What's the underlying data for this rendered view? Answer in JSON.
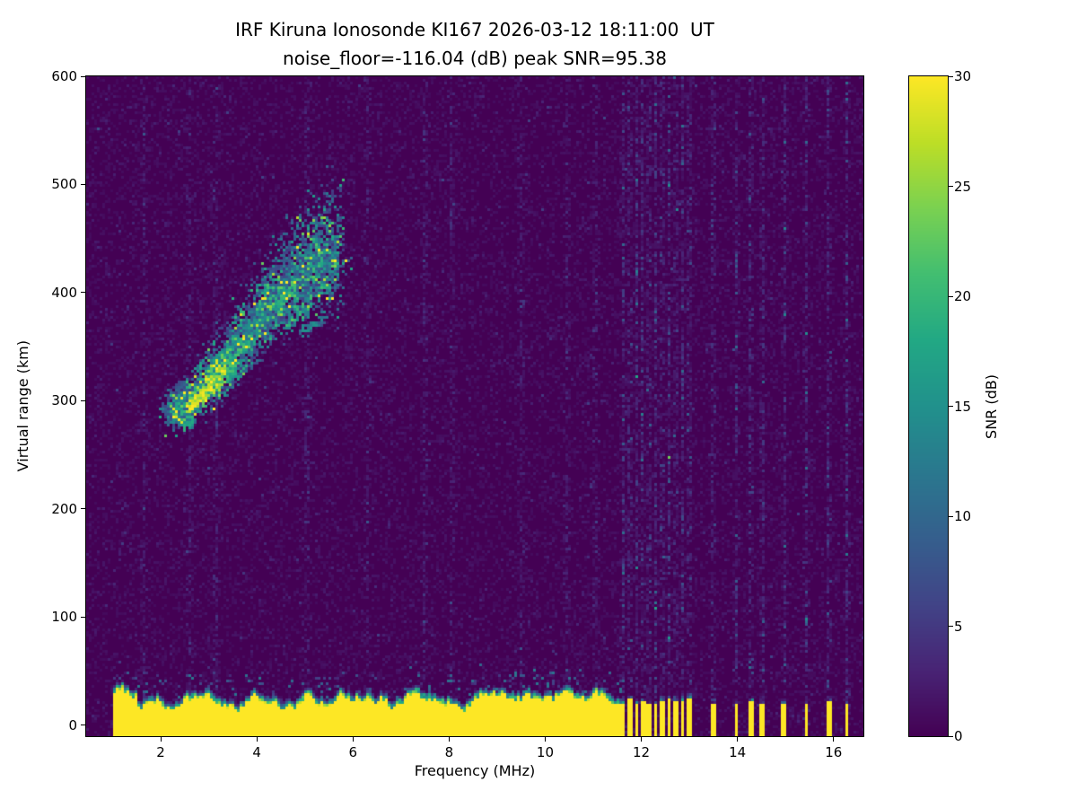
{
  "chart_data": {
    "type": "heatmap",
    "title": "IRF Kiruna Ionosonde KI167 2026-03-12 18:11:00  UT",
    "subtitle": "noise_floor=-116.04 (dB) peak SNR=95.38",
    "station": "KI167",
    "timestamp_ut": "2026-03-12 18:11:00",
    "noise_floor_db": -116.04,
    "peak_snr_db": 95.38,
    "xlabel": "Frequency (MHz)",
    "ylabel": "Virtual range (km)",
    "xlim": [
      0.45,
      16.62
    ],
    "ylim": [
      -10,
      600
    ],
    "xticks": [
      2,
      4,
      6,
      8,
      10,
      12,
      14,
      16
    ],
    "yticks": [
      0,
      100,
      200,
      300,
      400,
      500,
      600
    ],
    "colorbar": {
      "label": "SNR (dB)",
      "ticks": [
        0,
        5,
        10,
        15,
        20,
        25,
        30
      ],
      "vmin": 0,
      "vmax": 30,
      "colormap": "viridis"
    },
    "sweep_mhz": [
      1.0,
      16.45
    ],
    "ground_echo": {
      "freq_start": 1.0,
      "freq_end": 11.57,
      "top_km_mean": 26,
      "top_km_min": 13,
      "top_km_max": 40,
      "snr_db": 30
    },
    "intermittent_stripes": {
      "freqs": [
        11.63,
        11.76,
        11.9,
        12.03,
        12.16,
        12.3,
        12.44,
        12.58,
        12.72,
        12.86,
        13.0,
        13.5,
        13.98,
        14.28,
        14.52,
        14.98,
        15.43,
        15.9,
        16.28
      ],
      "top_km": 22,
      "snr_db": 30
    },
    "rfi_columns_weak_mhz": [
      1.65,
      2.6,
      3.15,
      5.05,
      6.3,
      7.5,
      8.05,
      9.5,
      10.45,
      11.05
    ],
    "echo_trace": {
      "points": [
        [
          2.2,
          287
        ],
        [
          2.45,
          292
        ],
        [
          2.7,
          300
        ],
        [
          2.95,
          310
        ],
        [
          3.2,
          322
        ],
        [
          3.45,
          336
        ],
        [
          3.7,
          351
        ],
        [
          3.95,
          366
        ],
        [
          4.2,
          380
        ],
        [
          4.45,
          393
        ],
        [
          4.7,
          404
        ],
        [
          4.95,
          413
        ],
        [
          5.2,
          421
        ],
        [
          5.45,
          428
        ],
        [
          5.7,
          433
        ]
      ],
      "spread_km": 28,
      "upward_tail_km": 55,
      "snr_min_db": 5,
      "snr_max_db": 30,
      "bright_freq_range": [
        2.6,
        3.35
      ]
    }
  }
}
